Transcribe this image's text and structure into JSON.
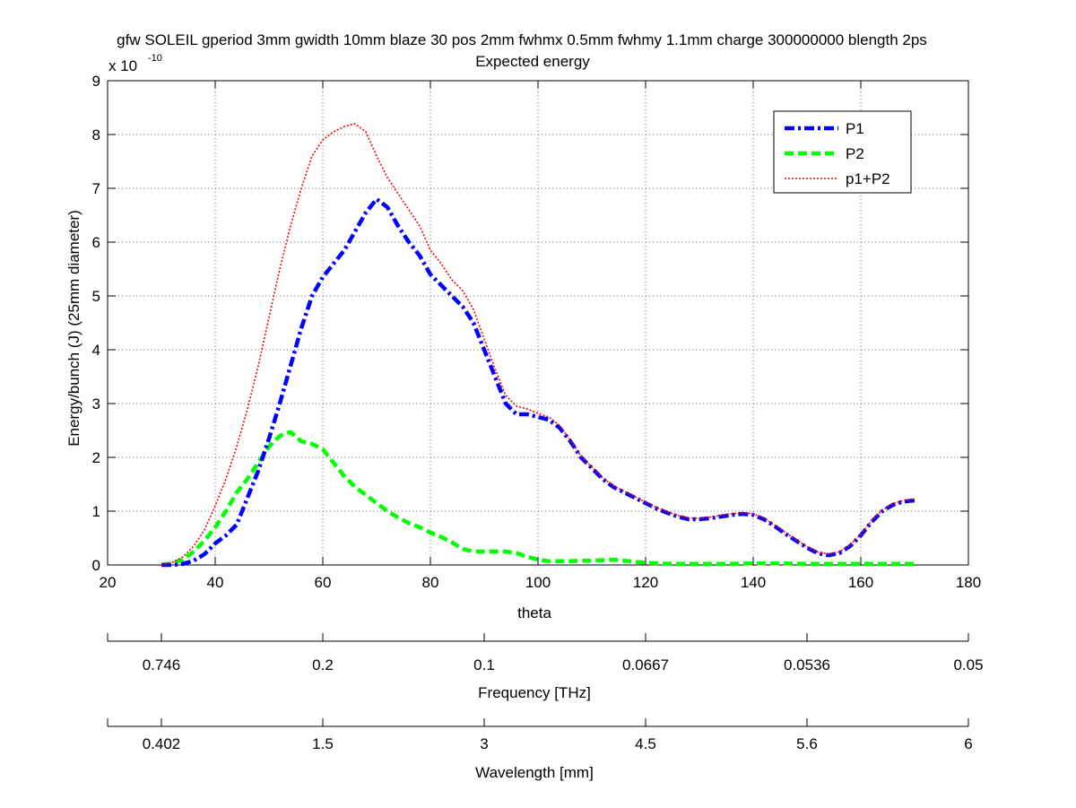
{
  "chart_data": {
    "type": "line",
    "title": "gfw SOLEIL gperiod 3mm gwidth 10mm blaze 30 pos 2mm fwhmx 0.5mm fwhmy 1.1mm charge 300000000 blength 2ps",
    "subtitle": "Expected energy",
    "xlabel": "theta",
    "ylabel": "Energy/bunch (J) (25mm diameter)",
    "y_multiplier_base": "x 10",
    "y_multiplier_exp": "-10",
    "xlim": [
      20,
      180
    ],
    "ylim": [
      0,
      9
    ],
    "x_ticks": [
      20,
      40,
      60,
      80,
      100,
      120,
      140,
      160,
      180
    ],
    "y_ticks": [
      0,
      1,
      2,
      3,
      4,
      5,
      6,
      7,
      8,
      9
    ],
    "grid": true,
    "legend_position": "top-right",
    "series": [
      {
        "name": "P1",
        "color": "#0000ff",
        "style": "dash-dot",
        "x": [
          30,
          32,
          34,
          36,
          38,
          40,
          42,
          44,
          46,
          48,
          50,
          52,
          54,
          56,
          58,
          60,
          62,
          64,
          66,
          68,
          70,
          72,
          74,
          76,
          78,
          80,
          82,
          84,
          86,
          88,
          90,
          92,
          94,
          96,
          98,
          100,
          102,
          104,
          106,
          108,
          110,
          112,
          114,
          116,
          118,
          120,
          122,
          124,
          126,
          128,
          130,
          132,
          134,
          136,
          138,
          140,
          142,
          144,
          146,
          148,
          150,
          152,
          154,
          156,
          158,
          160,
          162,
          164,
          166,
          168,
          170
        ],
        "y": [
          0.0,
          0.0,
          0.02,
          0.08,
          0.2,
          0.4,
          0.55,
          0.75,
          1.25,
          1.75,
          2.35,
          3.0,
          3.7,
          4.4,
          5.0,
          5.35,
          5.6,
          5.85,
          6.2,
          6.55,
          6.8,
          6.65,
          6.3,
          6.0,
          5.75,
          5.4,
          5.2,
          5.0,
          4.8,
          4.5,
          4.0,
          3.5,
          3.0,
          2.8,
          2.8,
          2.75,
          2.7,
          2.55,
          2.3,
          2.0,
          1.8,
          1.6,
          1.45,
          1.35,
          1.25,
          1.15,
          1.05,
          0.97,
          0.9,
          0.85,
          0.85,
          0.87,
          0.9,
          0.93,
          0.95,
          0.93,
          0.85,
          0.72,
          0.58,
          0.45,
          0.32,
          0.22,
          0.18,
          0.22,
          0.35,
          0.55,
          0.8,
          1.0,
          1.12,
          1.18,
          1.2
        ]
      },
      {
        "name": "P2",
        "color": "#00ff00",
        "style": "dashed",
        "x": [
          30,
          32,
          34,
          36,
          38,
          40,
          42,
          44,
          46,
          48,
          50,
          52,
          54,
          56,
          58,
          60,
          62,
          64,
          66,
          68,
          70,
          72,
          74,
          76,
          78,
          80,
          82,
          84,
          86,
          88,
          90,
          92,
          94,
          96,
          98,
          100,
          102,
          104,
          106,
          108,
          110,
          112,
          114,
          116,
          118,
          120,
          125,
          130,
          135,
          140,
          145,
          150,
          155,
          160,
          165,
          170
        ],
        "y": [
          0.0,
          0.03,
          0.1,
          0.25,
          0.45,
          0.7,
          1.0,
          1.35,
          1.6,
          1.9,
          2.2,
          2.4,
          2.47,
          2.3,
          2.25,
          2.15,
          1.9,
          1.65,
          1.45,
          1.3,
          1.15,
          1.0,
          0.88,
          0.78,
          0.7,
          0.6,
          0.52,
          0.42,
          0.3,
          0.25,
          0.25,
          0.25,
          0.25,
          0.22,
          0.15,
          0.1,
          0.07,
          0.07,
          0.07,
          0.08,
          0.08,
          0.09,
          0.1,
          0.08,
          0.06,
          0.04,
          0.02,
          0.02,
          0.02,
          0.03,
          0.03,
          0.02,
          0.02,
          0.02,
          0.02,
          0.02
        ]
      },
      {
        "name": "p1+P2",
        "color": "#ff0000",
        "style": "dotted",
        "x": [
          30,
          32,
          34,
          36,
          38,
          40,
          42,
          44,
          46,
          48,
          50,
          52,
          54,
          56,
          58,
          60,
          62,
          64,
          66,
          68,
          70,
          72,
          74,
          76,
          78,
          80,
          82,
          84,
          86,
          88,
          90,
          92,
          94,
          96,
          98,
          100,
          102,
          104,
          106,
          108,
          110,
          112,
          114,
          116,
          118,
          120,
          122,
          124,
          126,
          128,
          130,
          132,
          134,
          136,
          138,
          140,
          142,
          144,
          146,
          148,
          150,
          152,
          154,
          156,
          158,
          160,
          162,
          164,
          166,
          168,
          170
        ],
        "y": [
          0.0,
          0.05,
          0.15,
          0.35,
          0.65,
          1.1,
          1.6,
          2.2,
          2.9,
          3.7,
          4.6,
          5.5,
          6.3,
          7.0,
          7.6,
          7.9,
          8.05,
          8.15,
          8.2,
          8.05,
          7.6,
          7.2,
          6.9,
          6.6,
          6.3,
          5.85,
          5.6,
          5.3,
          5.1,
          4.75,
          4.2,
          3.65,
          3.15,
          2.95,
          2.9,
          2.82,
          2.75,
          2.6,
          2.32,
          2.02,
          1.82,
          1.62,
          1.47,
          1.37,
          1.27,
          1.17,
          1.07,
          0.99,
          0.92,
          0.87,
          0.87,
          0.89,
          0.92,
          0.95,
          0.97,
          0.95,
          0.87,
          0.74,
          0.6,
          0.47,
          0.34,
          0.24,
          0.2,
          0.24,
          0.37,
          0.57,
          0.82,
          1.02,
          1.14,
          1.2,
          1.22
        ]
      }
    ],
    "secondary_axes": [
      {
        "name": "frequency",
        "label": "Frequency [THz]",
        "tick_labels": [
          "0.746",
          "0.2",
          "0.1",
          "0.0667",
          "0.0536",
          "0.05"
        ]
      },
      {
        "name": "wavelength",
        "label": "Wavelength [mm]",
        "tick_labels": [
          "0.402",
          "1.5",
          "3",
          "4.5",
          "5.6",
          "6"
        ]
      }
    ]
  }
}
